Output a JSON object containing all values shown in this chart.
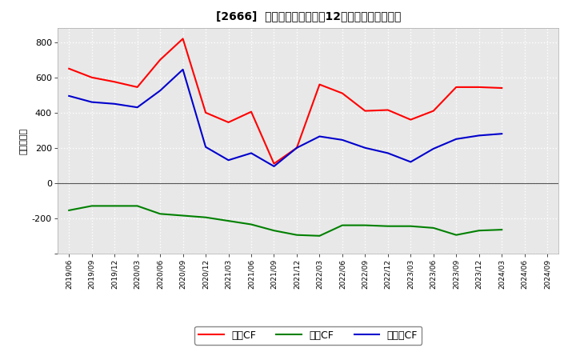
{
  "title": "[2666]  キャッシュフローの12か月移動合計の推移",
  "ylabel": "（百万円）",
  "x_labels": [
    "2019/06",
    "2019/09",
    "2019/12",
    "2020/03",
    "2020/06",
    "2020/09",
    "2020/12",
    "2021/03",
    "2021/06",
    "2021/09",
    "2021/12",
    "2022/03",
    "2022/06",
    "2022/09",
    "2022/12",
    "2023/03",
    "2023/06",
    "2023/09",
    "2023/12",
    "2024/03",
    "2024/06",
    "2024/09"
  ],
  "eigyo_cf": [
    650,
    600,
    575,
    545,
    700,
    820,
    400,
    345,
    405,
    110,
    200,
    560,
    510,
    410,
    415,
    360,
    410,
    545,
    545,
    540,
    null,
    null
  ],
  "toshi_cf": [
    -155,
    -130,
    -130,
    -130,
    -175,
    -185,
    -195,
    -215,
    -235,
    -270,
    -295,
    -300,
    -240,
    -240,
    -245,
    -245,
    -255,
    -295,
    -270,
    -265,
    null,
    null
  ],
  "free_cf": [
    495,
    460,
    450,
    430,
    525,
    645,
    205,
    130,
    170,
    95,
    200,
    265,
    245,
    200,
    170,
    120,
    195,
    250,
    270,
    280,
    null,
    null
  ],
  "eigyo_color": "#ff0000",
  "toshi_color": "#008000",
  "free_color": "#0000cd",
  "bg_color": "#ffffff",
  "plot_bg_color": "#e8e8e8",
  "grid_color": "#ffffff",
  "ylim": [
    -400,
    880
  ],
  "yticks": [
    -400,
    -200,
    0,
    200,
    400,
    600,
    800
  ],
  "legend_labels": [
    "営業CF",
    "投資CF",
    "フリーCF"
  ]
}
